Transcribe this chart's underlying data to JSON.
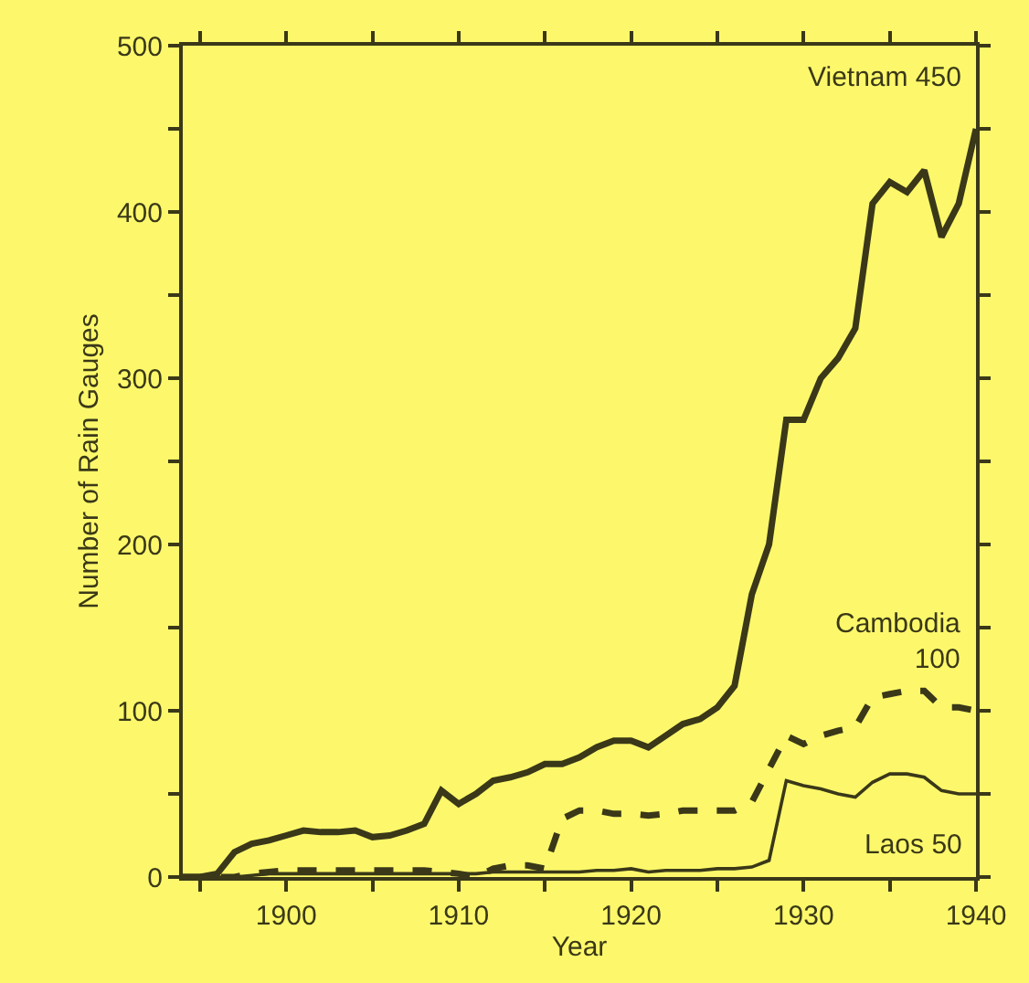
{
  "chart_data": {
    "type": "line",
    "xlabel": "Year",
    "ylabel": "Number of Rain Gauges",
    "x": [
      1894,
      1895,
      1896,
      1897,
      1898,
      1899,
      1900,
      1901,
      1902,
      1903,
      1904,
      1905,
      1906,
      1907,
      1908,
      1909,
      1910,
      1911,
      1912,
      1913,
      1914,
      1915,
      1916,
      1917,
      1918,
      1919,
      1920,
      1921,
      1922,
      1923,
      1924,
      1925,
      1926,
      1927,
      1928,
      1929,
      1930,
      1931,
      1932,
      1933,
      1934,
      1935,
      1936,
      1937,
      1938,
      1939,
      1940
    ],
    "series": [
      {
        "color": "#3a3818",
        "line_style": "solid",
        "values": [
          0,
          0,
          2,
          15,
          20,
          22,
          25,
          28,
          27,
          27,
          28,
          24,
          25,
          28,
          32,
          52,
          44,
          50,
          58,
          60,
          63,
          68,
          68,
          72,
          78,
          82,
          82,
          78,
          85,
          92,
          95,
          102,
          115,
          170,
          200,
          275,
          275,
          300,
          312,
          330,
          405,
          418,
          412,
          425,
          385,
          405,
          450
        ]
      },
      {
        "color": "#3a3818",
        "line_style": "dashed",
        "values": [
          0,
          0,
          0,
          0,
          2,
          3,
          4,
          4,
          4,
          4,
          4,
          4,
          4,
          4,
          4,
          3,
          2,
          0,
          5,
          7,
          7,
          5,
          35,
          40,
          40,
          38,
          38,
          37,
          38,
          40,
          40,
          40,
          40,
          45,
          65,
          85,
          80,
          85,
          88,
          90,
          108,
          110,
          112,
          112,
          102,
          102,
          100
        ]
      },
      {
        "color": "#3a3818",
        "line_style": "solid",
        "values": [
          0,
          0,
          0,
          0,
          1,
          2,
          2,
          2,
          2,
          2,
          2,
          2,
          2,
          2,
          2,
          2,
          2,
          2,
          3,
          3,
          3,
          3,
          3,
          3,
          4,
          4,
          5,
          3,
          4,
          4,
          4,
          5,
          5,
          6,
          10,
          58,
          55,
          53,
          50,
          48,
          57,
          62,
          62,
          60,
          52,
          50,
          50
        ]
      }
    ],
    "xlim": [
      1894,
      1940
    ],
    "xticks": [
      {
        "value": 1895,
        "label": null
      },
      1900,
      {
        "value": 1905,
        "label": null
      },
      1910,
      {
        "value": 1915,
        "label": null
      },
      1920,
      {
        "value": 1925,
        "label": null
      },
      1930,
      {
        "value": 1935,
        "label": null
      },
      1940
    ],
    "ylim": [
      0,
      500
    ],
    "yticks": [
      0,
      {
        "value": 50,
        "label": null
      },
      100,
      {
        "value": 150,
        "label": null
      },
      200,
      {
        "value": 250,
        "label": null
      },
      300,
      {
        "value": 350,
        "label": null
      },
      400,
      {
        "value": 450,
        "label": null
      },
      500
    ],
    "annotations": [
      "Vietnam 450",
      "Cambodia\n100",
      "Laos 50"
    ],
    "grid": false,
    "legend": false,
    "marker": "none"
  }
}
